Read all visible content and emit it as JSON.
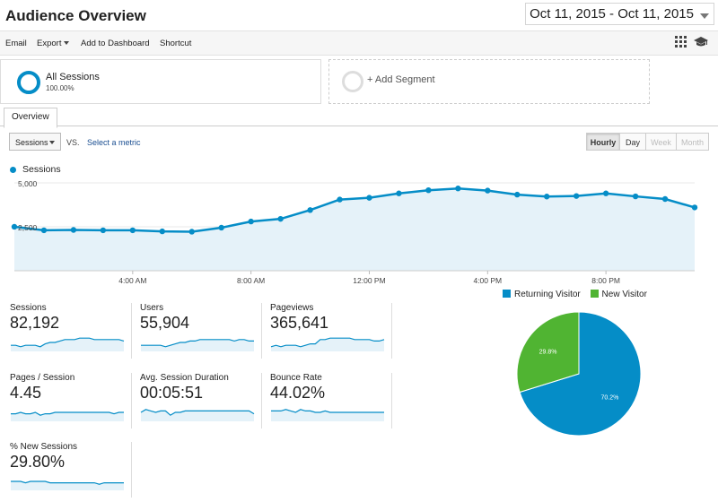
{
  "header": {
    "title": "Audience Overview",
    "date_range": "Oct 11, 2015 - Oct 11, 2015"
  },
  "toolbar": {
    "email": "Email",
    "export": "Export",
    "add_to_dashboard": "Add to Dashboard",
    "shortcut": "Shortcut",
    "icons": [
      "grid-icon",
      "graduation-cap-icon"
    ]
  },
  "segments": {
    "all_sessions": {
      "label": "All Sessions",
      "pct": "100.00%"
    },
    "add_segment": "+ Add Segment"
  },
  "tabs": {
    "overview": "Overview"
  },
  "controls": {
    "metric": "Sessions",
    "vs": "VS.",
    "select_metric": "Select a metric",
    "time_buttons": [
      {
        "label": "Hourly",
        "state": "active"
      },
      {
        "label": "Day",
        "state": "normal"
      },
      {
        "label": "Week",
        "state": "disabled"
      },
      {
        "label": "Month",
        "state": "disabled"
      }
    ]
  },
  "colors": {
    "accent": "#058dc7",
    "new_visitor": "#50b432",
    "fill": "#e5f2f9"
  },
  "chart_data": [
    {
      "type": "area",
      "series": [
        {
          "name": "Sessions",
          "values": [
            2500,
            2300,
            2320,
            2300,
            2300,
            2240,
            2220,
            2450,
            2800,
            2950,
            3450,
            4050,
            4150,
            4400,
            4580,
            4680,
            4560,
            4330,
            4220,
            4250,
            4400,
            4230,
            4080,
            3600
          ]
        }
      ],
      "x": [
        0,
        1,
        2,
        3,
        4,
        5,
        6,
        7,
        8,
        9,
        10,
        11,
        12,
        13,
        14,
        15,
        16,
        17,
        18,
        19,
        20,
        21,
        22,
        23
      ],
      "x_ticks": [
        {
          "x": 4,
          "label": "4:00 AM"
        },
        {
          "x": 8,
          "label": "8:00 AM"
        },
        {
          "x": 12,
          "label": "12:00 PM"
        },
        {
          "x": 16,
          "label": "4:00 PM"
        },
        {
          "x": 20,
          "label": "8:00 PM"
        }
      ],
      "y_ticks": [
        {
          "y": 5000,
          "label": "5,000"
        },
        {
          "y": 2500,
          "label": "2,500"
        }
      ],
      "ylim": [
        0,
        5100
      ],
      "legend": "top-left",
      "grid": true
    },
    {
      "type": "pie",
      "slices": [
        {
          "label": "Returning Visitor",
          "value": 70.2,
          "text": "70.2%",
          "color": "#058dc7"
        },
        {
          "label": "New Visitor",
          "value": 29.8,
          "text": "29.8%",
          "color": "#50b432"
        }
      ],
      "legend": "top"
    }
  ],
  "metrics": [
    {
      "label": "Sessions",
      "value": "82,192",
      "spark": [
        3,
        3,
        2,
        3,
        3,
        3,
        2,
        4,
        5,
        5,
        6,
        7,
        7,
        7,
        8,
        8,
        8,
        7,
        7,
        7,
        7,
        7,
        7,
        6
      ]
    },
    {
      "label": "Users",
      "value": "55,904",
      "spark": [
        3,
        3,
        3,
        3,
        3,
        2,
        3,
        4,
        5,
        5,
        6,
        6,
        7,
        7,
        7,
        7,
        7,
        7,
        7,
        6,
        7,
        7,
        6,
        6
      ]
    },
    {
      "label": "Pageviews",
      "value": "365,641",
      "spark": [
        2,
        3,
        2,
        3,
        3,
        3,
        2,
        3,
        4,
        4,
        7,
        7,
        8,
        8,
        8,
        8,
        8,
        7,
        7,
        7,
        7,
        6,
        6,
        7
      ]
    },
    {
      "label": "Pages / Session",
      "value": "4.45",
      "spark": [
        4,
        4,
        5,
        4,
        4,
        5,
        3,
        4,
        4,
        5,
        5,
        5,
        5,
        5,
        5,
        5,
        5,
        5,
        5,
        5,
        5,
        4,
        5,
        5
      ]
    },
    {
      "label": "Avg. Session Duration",
      "value": "00:05:51",
      "spark": [
        5,
        7,
        6,
        5,
        6,
        6,
        3,
        5,
        5,
        6,
        6,
        6,
        6,
        6,
        6,
        6,
        6,
        6,
        6,
        6,
        6,
        6,
        6,
        4
      ]
    },
    {
      "label": "Bounce Rate",
      "value": "44.02%",
      "spark": [
        6,
        6,
        6,
        7,
        6,
        5,
        7,
        6,
        6,
        5,
        5,
        6,
        5,
        5,
        5,
        5,
        5,
        5,
        5,
        5,
        5,
        5,
        5,
        5
      ]
    },
    {
      "label": "% New Sessions",
      "value": "29.80%",
      "spark": [
        5,
        5,
        5,
        4,
        5,
        5,
        5,
        5,
        4,
        4,
        4,
        4,
        4,
        4,
        4,
        4,
        4,
        4,
        3,
        4,
        4,
        4,
        4,
        4
      ]
    }
  ]
}
